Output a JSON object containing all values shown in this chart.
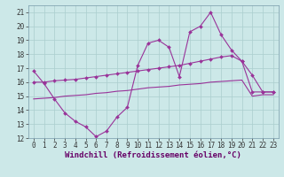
{
  "xlabel": "Windchill (Refroidissement éolien,°C)",
  "xlim": [
    -0.5,
    23.5
  ],
  "ylim": [
    12,
    21.5
  ],
  "xticks": [
    0,
    1,
    2,
    3,
    4,
    5,
    6,
    7,
    8,
    9,
    10,
    11,
    12,
    13,
    14,
    15,
    16,
    17,
    18,
    19,
    20,
    21,
    22,
    23
  ],
  "yticks": [
    12,
    13,
    14,
    15,
    16,
    17,
    18,
    19,
    20,
    21
  ],
  "line_color": "#993399",
  "bg_color": "#cce8e8",
  "grid_color": "#aacece",
  "line1_x": [
    0,
    1,
    2,
    3,
    4,
    5,
    6,
    7,
    8,
    9,
    10,
    11,
    12,
    13,
    14,
    15,
    16,
    17,
    18,
    19,
    20,
    21,
    22,
    23
  ],
  "line1_y": [
    16.8,
    15.9,
    14.8,
    13.8,
    13.2,
    12.8,
    12.1,
    12.5,
    13.5,
    14.2,
    17.2,
    18.8,
    19.0,
    18.5,
    16.4,
    19.6,
    20.0,
    21.0,
    19.4,
    18.3,
    17.5,
    16.5,
    15.3,
    15.3
  ],
  "line2_x": [
    0,
    1,
    2,
    3,
    4,
    5,
    6,
    7,
    8,
    9,
    10,
    11,
    12,
    13,
    14,
    15,
    16,
    17,
    18,
    19,
    20,
    21,
    22,
    23
  ],
  "line2_y": [
    16.0,
    16.0,
    16.1,
    16.15,
    16.2,
    16.3,
    16.4,
    16.5,
    16.6,
    16.7,
    16.8,
    16.9,
    17.0,
    17.1,
    17.2,
    17.35,
    17.5,
    17.65,
    17.8,
    17.9,
    17.5,
    15.3,
    15.3,
    15.3
  ],
  "line3_x": [
    0,
    1,
    2,
    3,
    4,
    5,
    6,
    7,
    8,
    9,
    10,
    11,
    12,
    13,
    14,
    15,
    16,
    17,
    18,
    19,
    20,
    21,
    22,
    23
  ],
  "line3_y": [
    14.8,
    14.85,
    14.9,
    15.0,
    15.05,
    15.1,
    15.2,
    15.25,
    15.35,
    15.4,
    15.5,
    15.6,
    15.65,
    15.7,
    15.8,
    15.85,
    15.9,
    16.0,
    16.05,
    16.1,
    16.15,
    15.0,
    15.1,
    15.1
  ],
  "tick_fontsize": 5.5,
  "xlabel_fontsize": 6.5
}
